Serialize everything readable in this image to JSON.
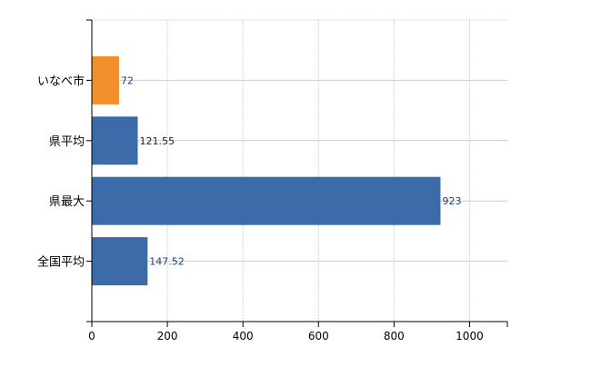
{
  "chart_data": {
    "type": "bar",
    "orientation": "horizontal",
    "categories": [
      "いなべ市",
      "県平均",
      "県最大",
      "全国平均"
    ],
    "values": [
      72,
      121.55,
      923,
      147.52
    ],
    "value_labels": [
      "72",
      "121.55",
      "923",
      "147.52"
    ],
    "colors": [
      "#f28e2b",
      "#3b6ba8",
      "#3b6ba8",
      "#3b6ba8"
    ],
    "label_colors": [
      "#1f3f7a",
      "#222222",
      "#1f3f7a",
      "#1f3f7a"
    ],
    "xlim": [
      0,
      1100
    ],
    "xticks": [
      0,
      200,
      400,
      600,
      800,
      1000
    ],
    "title": "",
    "xlabel": "",
    "ylabel": "",
    "grid": true,
    "legend": "none"
  }
}
